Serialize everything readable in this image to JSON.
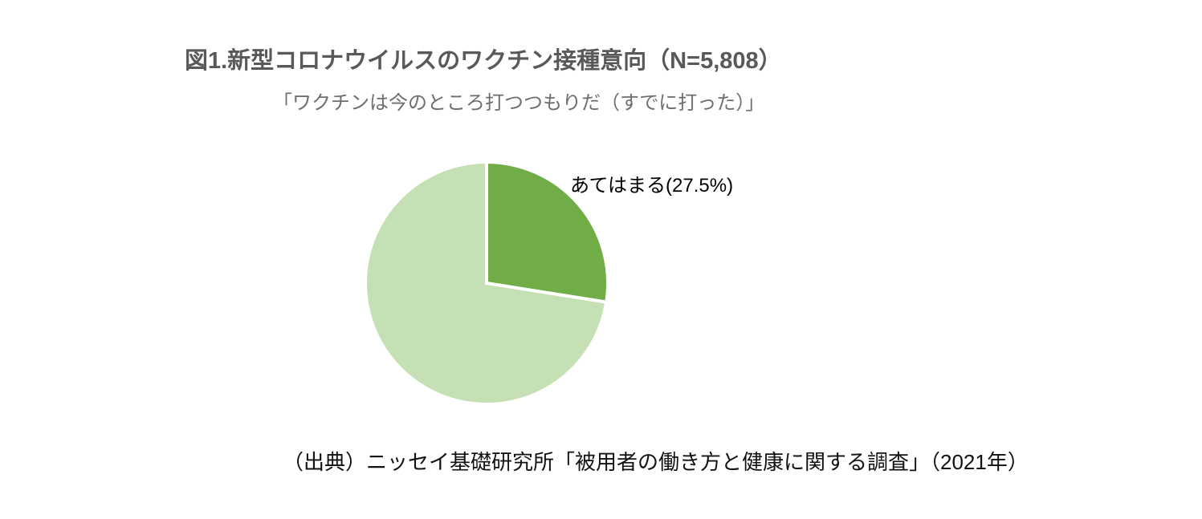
{
  "chart_data": {
    "type": "pie",
    "title": "図1.新型コロナウイルスのワクチン接種意向（N=5,808）",
    "subtitle": "「ワクチンは今のところ打つつもりだ（すでに打った）」",
    "values": [
      27.5,
      72.5
    ],
    "labels": [
      "あてはまる(27.5%)",
      ""
    ],
    "colors": [
      "#70ad47",
      "#c5e0b4"
    ],
    "start_angle_deg": 0,
    "direction": "clockwise",
    "legend": "none",
    "slice_border_color": "#ffffff"
  },
  "source": {
    "text": "（出典）ニッセイ基礎研究所「被用者の働き方と健康に関する調査」（2021年）"
  }
}
